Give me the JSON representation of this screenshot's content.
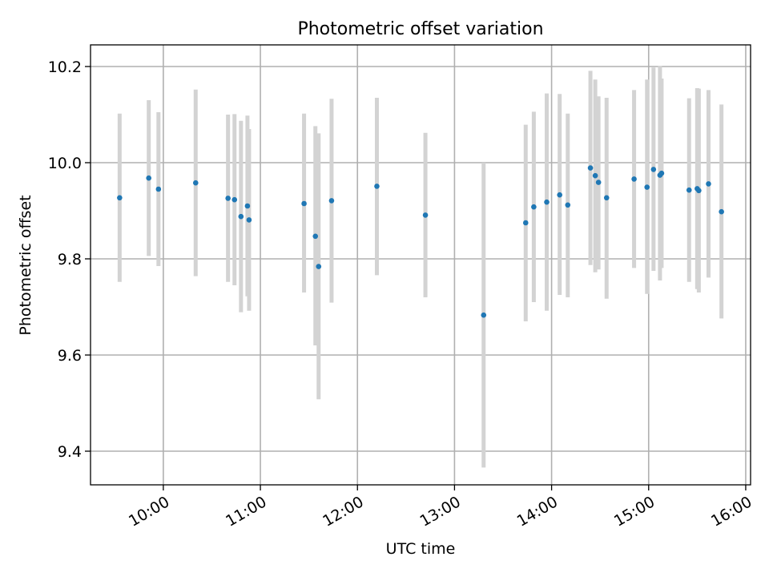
{
  "chart_data": {
    "type": "scatter",
    "title": "Photometric offset variation",
    "xlabel": "UTC time",
    "ylabel": "Photometric offset",
    "grid": true,
    "xlim": [
      "09:15",
      "16:03"
    ],
    "ylim": [
      9.33,
      10.245
    ],
    "x_ticks": [
      "10:00",
      "11:00",
      "12:00",
      "13:00",
      "14:00",
      "15:00",
      "16:00"
    ],
    "y_ticks": [
      9.4,
      9.6,
      9.8,
      10.0,
      10.2
    ],
    "colors": {
      "point": "#1f77b4",
      "errorbar": "#d3d3d3",
      "grid": "#b0b0b0"
    },
    "series": [
      {
        "points": [
          {
            "x": "09:33",
            "y": 9.927,
            "ylo": 9.752,
            "yhi": 10.102
          },
          {
            "x": "09:51",
            "y": 9.968,
            "ylo": 9.806,
            "yhi": 10.13
          },
          {
            "x": "09:57",
            "y": 9.945,
            "ylo": 9.785,
            "yhi": 10.105
          },
          {
            "x": "10:20",
            "y": 9.958,
            "ylo": 9.764,
            "yhi": 10.152
          },
          {
            "x": "10:40",
            "y": 9.926,
            "ylo": 9.752,
            "yhi": 10.1
          },
          {
            "x": "10:44",
            "y": 9.923,
            "ylo": 9.745,
            "yhi": 10.101
          },
          {
            "x": "10:48",
            "y": 9.888,
            "ylo": 9.689,
            "yhi": 10.087
          },
          {
            "x": "10:52",
            "y": 9.91,
            "ylo": 9.722,
            "yhi": 10.098
          },
          {
            "x": "10:53",
            "y": 9.881,
            "ylo": 9.692,
            "yhi": 10.07
          },
          {
            "x": "11:27",
            "y": 9.915,
            "ylo": 9.73,
            "yhi": 10.102
          },
          {
            "x": "11:34",
            "y": 9.847,
            "ylo": 9.62,
            "yhi": 10.076
          },
          {
            "x": "11:36",
            "y": 9.784,
            "ylo": 9.508,
            "yhi": 10.061
          },
          {
            "x": "11:44",
            "y": 9.921,
            "ylo": 9.709,
            "yhi": 10.133
          },
          {
            "x": "12:12",
            "y": 9.951,
            "ylo": 9.766,
            "yhi": 10.135
          },
          {
            "x": "12:42",
            "y": 9.891,
            "ylo": 9.72,
            "yhi": 10.062
          },
          {
            "x": "13:18",
            "y": 9.683,
            "ylo": 9.366,
            "yhi": 10.0
          },
          {
            "x": "13:44",
            "y": 9.875,
            "ylo": 9.67,
            "yhi": 10.079
          },
          {
            "x": "13:49",
            "y": 9.908,
            "ylo": 9.71,
            "yhi": 10.106
          },
          {
            "x": "13:57",
            "y": 9.918,
            "ylo": 9.692,
            "yhi": 10.144
          },
          {
            "x": "14:05",
            "y": 9.933,
            "ylo": 9.725,
            "yhi": 10.143
          },
          {
            "x": "14:10",
            "y": 9.912,
            "ylo": 9.72,
            "yhi": 10.102
          },
          {
            "x": "14:24",
            "y": 9.989,
            "ylo": 9.787,
            "yhi": 10.191
          },
          {
            "x": "14:27",
            "y": 9.973,
            "ylo": 9.772,
            "yhi": 10.173
          },
          {
            "x": "14:29",
            "y": 9.959,
            "ylo": 9.778,
            "yhi": 10.138
          },
          {
            "x": "14:34",
            "y": 9.927,
            "ylo": 9.717,
            "yhi": 10.135
          },
          {
            "x": "14:51",
            "y": 9.966,
            "ylo": 9.781,
            "yhi": 10.151
          },
          {
            "x": "14:59",
            "y": 9.949,
            "ylo": 9.727,
            "yhi": 10.173
          },
          {
            "x": "15:03",
            "y": 9.986,
            "ylo": 9.775,
            "yhi": 10.198
          },
          {
            "x": "15:07",
            "y": 9.974,
            "ylo": 9.755,
            "yhi": 10.201
          },
          {
            "x": "15:08",
            "y": 9.978,
            "ylo": 9.781,
            "yhi": 10.175
          },
          {
            "x": "15:25",
            "y": 9.943,
            "ylo": 9.752,
            "yhi": 10.134
          },
          {
            "x": "15:30",
            "y": 9.946,
            "ylo": 9.737,
            "yhi": 10.155
          },
          {
            "x": "15:31",
            "y": 9.942,
            "ylo": 9.73,
            "yhi": 10.154
          },
          {
            "x": "15:37",
            "y": 9.956,
            "ylo": 9.761,
            "yhi": 10.151
          },
          {
            "x": "15:45",
            "y": 9.898,
            "ylo": 9.676,
            "yhi": 10.121
          }
        ]
      }
    ]
  }
}
